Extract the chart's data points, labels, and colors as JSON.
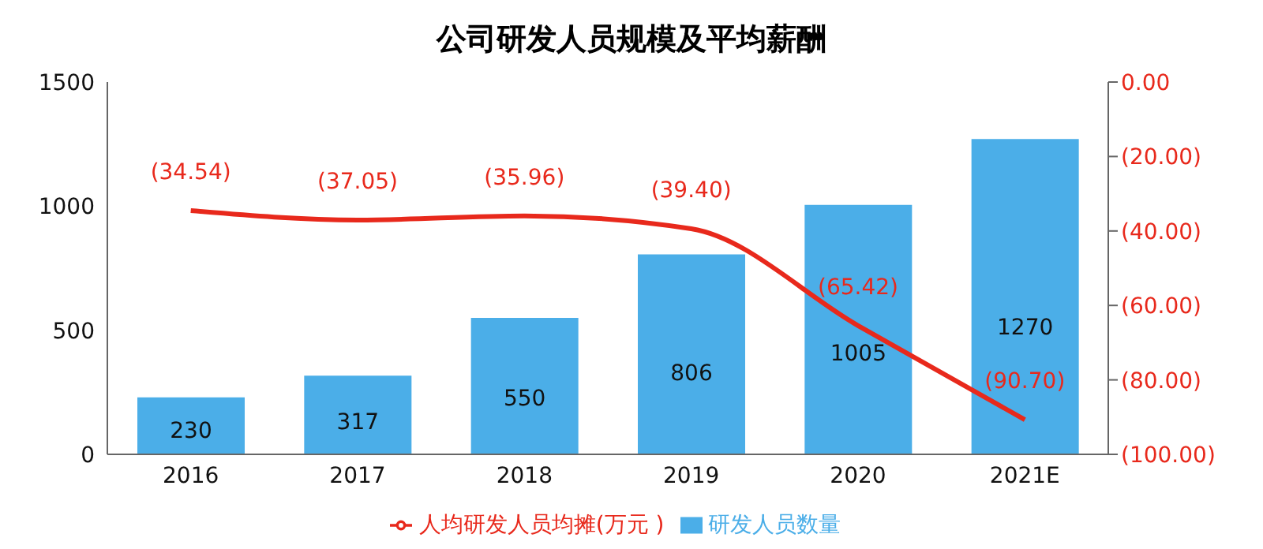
{
  "chart_data": {
    "type": "bar",
    "title": "公司研发人员规模及平均薪酬",
    "categories": [
      "2016",
      "2017",
      "2018",
      "2019",
      "2020",
      "2021E"
    ],
    "series": [
      {
        "name": "研发人员数量",
        "color": "#4baee8",
        "values": [
          230,
          317,
          550,
          806,
          1005,
          1270
        ],
        "value_labels": [
          "230",
          "317",
          "550",
          "806",
          "1005",
          "1270"
        ]
      },
      {
        "name": "人均研发人员均摊(万元 )",
        "type": "line",
        "axis": "y2",
        "color": "#e8291c",
        "values": [
          -34.54,
          -37.05,
          -35.96,
          -39.4,
          -65.42,
          -90.7
        ],
        "value_labels": [
          "(34.54)",
          "(37.05)",
          "(35.96)",
          "(39.40)",
          "(65.42)",
          "(90.70)"
        ]
      }
    ],
    "ylim": [
      0,
      1500
    ],
    "yticks": [
      0,
      500,
      1000,
      1500
    ],
    "y2lim": [
      -100,
      0
    ],
    "y2ticks": [
      {
        "value": 0,
        "label": "0.00"
      },
      {
        "value": -20,
        "label": "(20.00)"
      },
      {
        "value": -40,
        "label": "(40.00)"
      },
      {
        "value": -60,
        "label": "(60.00)"
      },
      {
        "value": -80,
        "label": "(80.00)"
      },
      {
        "value": -100,
        "label": "(100.00)"
      }
    ],
    "grid": false,
    "legend": "bottom"
  }
}
